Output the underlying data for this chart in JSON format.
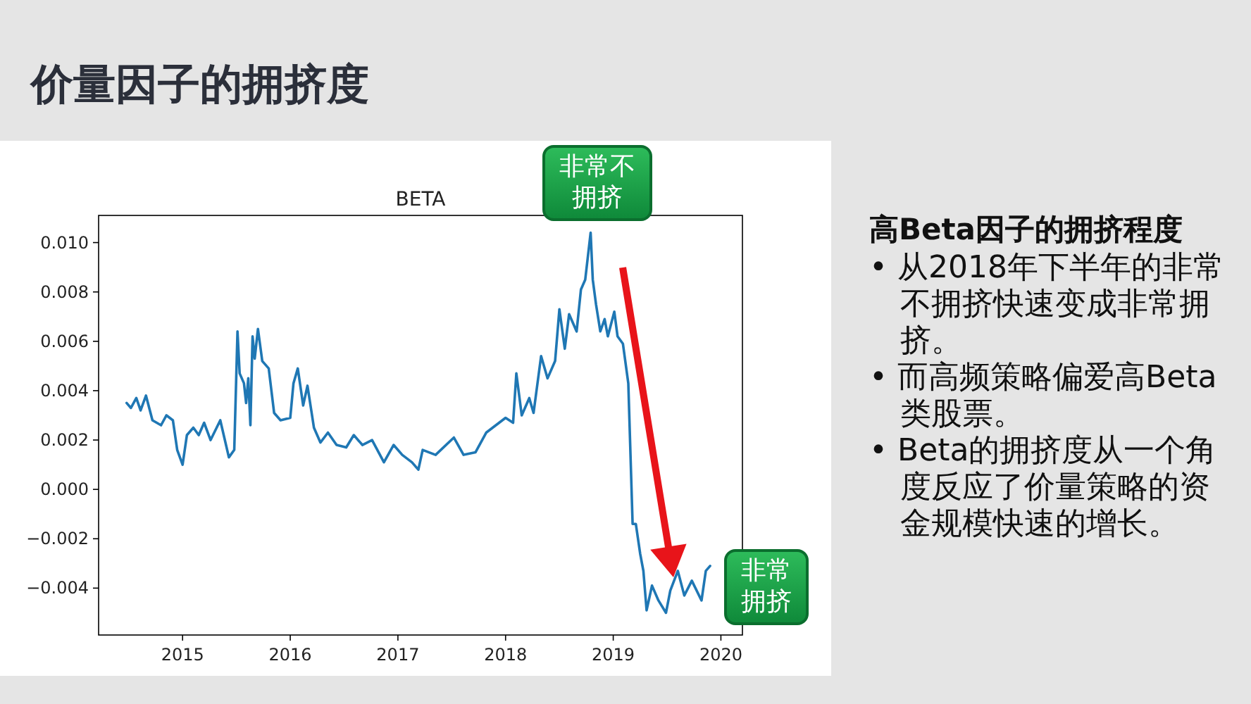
{
  "chart_data": {
    "type": "line",
    "title": "价量因子的拥挤度",
    "subtitle": "BETA",
    "xlim": [
      2014.22,
      2020.2
    ],
    "xticks": [
      2015,
      2016,
      2017,
      2018,
      2019,
      2020
    ],
    "ylim": [
      -0.0059,
      0.0111
    ],
    "yticks": [
      {
        "value": -0.004,
        "label": "−0.004"
      },
      {
        "value": -0.002,
        "label": "−0.002"
      },
      {
        "value": 0,
        "label": "0.000"
      },
      {
        "value": 0.002,
        "label": "0.002"
      },
      {
        "value": 0.004,
        "label": "0.004"
      },
      {
        "value": 0.006,
        "label": "0.006"
      },
      {
        "value": 0.008,
        "label": "0.008"
      },
      {
        "value": 0.01,
        "label": "0.010"
      }
    ],
    "series": [
      {
        "color": "#1f77b4",
        "x": [
          2014.48,
          2014.52,
          2014.57,
          2014.61,
          2014.66,
          2014.72,
          2014.8,
          2014.85,
          2014.91,
          2014.95,
          2015.0,
          2015.04,
          2015.1,
          2015.15,
          2015.2,
          2015.26,
          2015.35,
          2015.43,
          2015.48,
          2015.51,
          2015.53,
          2015.57,
          2015.59,
          2015.61,
          2015.63,
          2015.65,
          2015.67,
          2015.7,
          2015.74,
          2015.8,
          2015.85,
          2015.91,
          2016.0,
          2016.03,
          2016.07,
          2016.12,
          2016.16,
          2016.22,
          2016.28,
          2016.35,
          2016.43,
          2016.52,
          2016.59,
          2016.67,
          2016.76,
          2016.87,
          2016.96,
          2017.04,
          2017.13,
          2017.19,
          2017.23,
          2017.35,
          2017.52,
          2017.61,
          2017.72,
          2017.82,
          2018.0,
          2018.07,
          2018.1,
          2018.15,
          2018.22,
          2018.26,
          2018.33,
          2018.39,
          2018.46,
          2018.5,
          2018.55,
          2018.59,
          2018.66,
          2018.7,
          2018.74,
          2018.79,
          2018.81,
          2018.84,
          2018.88,
          2018.92,
          2018.95,
          2019.01,
          2019.04,
          2019.09,
          2019.14,
          2019.18,
          2019.21,
          2019.25,
          2019.28,
          2019.31,
          2019.36,
          2019.42,
          2019.49,
          2019.53,
          2019.6,
          2019.66,
          2019.73,
          2019.82,
          2019.86,
          2019.9
        ],
        "values": [
          0.0035,
          0.0033,
          0.0037,
          0.0032,
          0.0038,
          0.0028,
          0.0026,
          0.003,
          0.0028,
          0.0016,
          0.001,
          0.0022,
          0.0025,
          0.0022,
          0.0027,
          0.002,
          0.0028,
          0.0013,
          0.0016,
          0.0064,
          0.0047,
          0.0043,
          0.0035,
          0.0045,
          0.0026,
          0.0062,
          0.0053,
          0.0065,
          0.0052,
          0.0049,
          0.0031,
          0.0028,
          0.0029,
          0.0043,
          0.0049,
          0.0034,
          0.0042,
          0.0025,
          0.0019,
          0.0023,
          0.0018,
          0.0017,
          0.0022,
          0.0018,
          0.002,
          0.0011,
          0.0018,
          0.0014,
          0.0011,
          0.0008,
          0.0016,
          0.0014,
          0.0021,
          0.0014,
          0.0015,
          0.0023,
          0.0029,
          0.0027,
          0.0047,
          0.003,
          0.0037,
          0.0031,
          0.0054,
          0.0045,
          0.0052,
          0.0073,
          0.0057,
          0.0071,
          0.0064,
          0.0081,
          0.0085,
          0.0104,
          0.0085,
          0.0075,
          0.0064,
          0.0069,
          0.0062,
          0.0072,
          0.0062,
          0.0059,
          0.0043,
          -0.0014,
          -0.0014,
          -0.0026,
          -0.0033,
          -0.0049,
          -0.0039,
          -0.0045,
          -0.005,
          -0.0041,
          -0.0033,
          -0.0043,
          -0.0037,
          -0.0045,
          -0.0033,
          -0.0031
        ]
      }
    ],
    "annotations": [
      {
        "text": "非常不拥挤",
        "x": 2018.79,
        "y": 0.0104
      },
      {
        "text": "非常拥挤",
        "x": 2019.9,
        "y": -0.0031
      },
      "高Beta因子的拥挤程度",
      "• 从2018年下半年的非常不拥挤快速变成非常拥挤。",
      "• 而高频策略偏爱高Beta类股票。",
      "• Beta的拥挤度从一个角度反应了价量策略的资金规模快速的增长。"
    ]
  }
}
